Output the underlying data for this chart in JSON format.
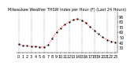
{
  "title": "Milwaukee Weather THSW Index per Hour (F) (Last 24 Hours)",
  "hours": [
    0,
    1,
    2,
    3,
    4,
    5,
    6,
    7,
    8,
    9,
    10,
    11,
    12,
    13,
    14,
    15,
    16,
    17,
    18,
    19,
    20,
    21,
    22,
    23
  ],
  "values": [
    36,
    34,
    33,
    32,
    32,
    31,
    31,
    35,
    48,
    60,
    68,
    75,
    80,
    84,
    86,
    83,
    78,
    70,
    63,
    56,
    50,
    45,
    42,
    40
  ],
  "line_color": "#ff0000",
  "marker_color": "#000000",
  "bg_color": "#ffffff",
  "grid_color": "#888888",
  "ylim": [
    20,
    100
  ],
  "yticks": [
    30,
    40,
    50,
    60,
    70,
    80,
    90
  ],
  "xlabel_fontsize": 3.5,
  "ylabel_fontsize": 3.5,
  "title_fontsize": 3.5,
  "vgrid_hours": [
    0,
    3,
    6,
    9,
    12,
    15,
    18,
    21,
    23
  ]
}
